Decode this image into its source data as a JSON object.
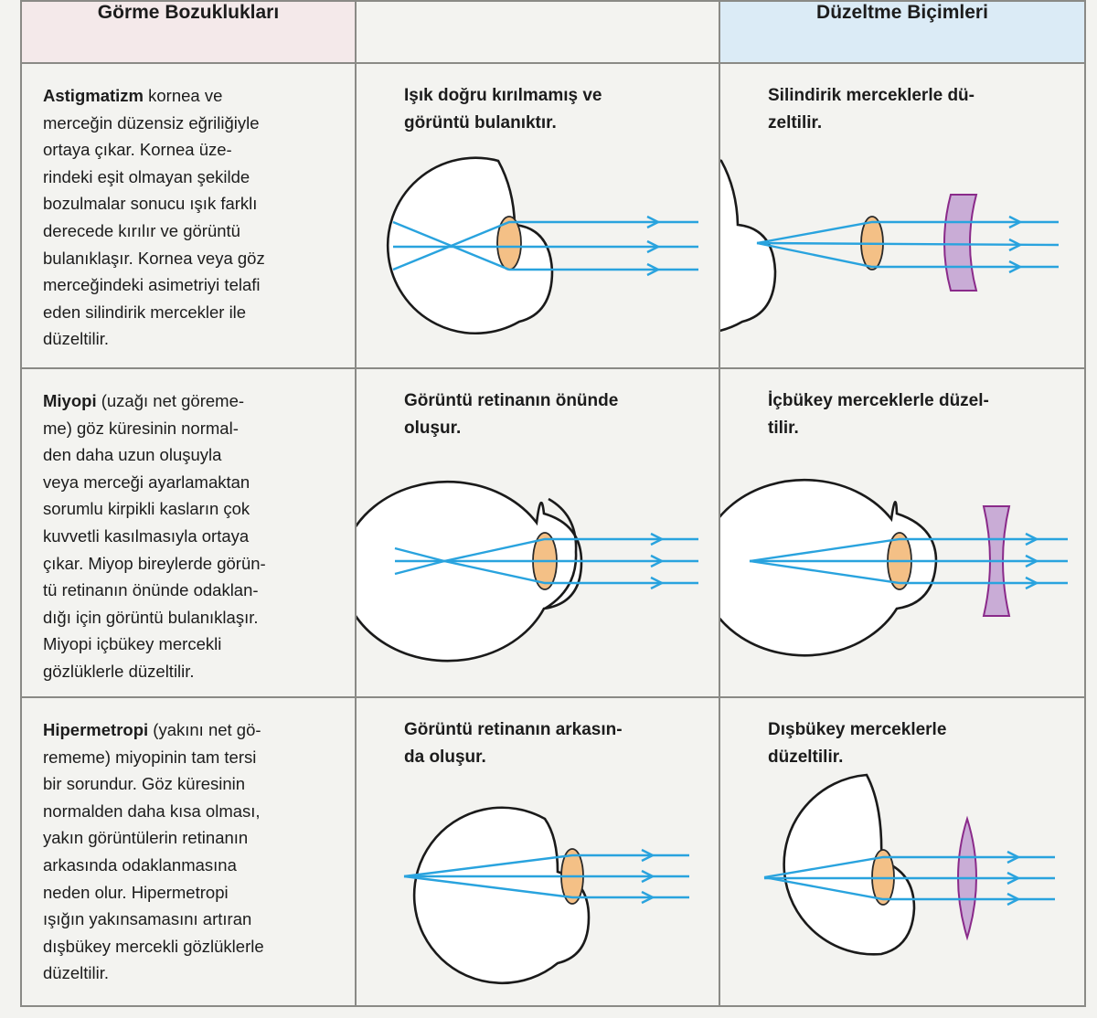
{
  "headers": {
    "col1": "Görme Bozuklukları",
    "col2": "",
    "col3": "Düzeltme Biçimleri"
  },
  "rows": [
    {
      "term": "Astigmatizm",
      "description": " kornea ve\nmerceğin düzensiz eğriliğiyle\nortaya çıkar. Kornea üze-\nrindeki eşit olmayan şekilde\nbozulmalar sonucu ışık farklı\nderecede kırılır ve görüntü\nbulanıklaşır. Kornea veya göz\nmerceğindeki asimetriyi telafi\neden silindirik mercekler ile\ndüzeltilir.",
      "problem_caption": "Işık doğru kırılmamış ve\ngörüntü bulanıktır.",
      "correction_caption": "Silindirik merceklerle dü-\nzeltilir."
    },
    {
      "term": "Miyopi",
      "description": " (uzağı net göreme-\nme) göz küresinin normal-\nden daha uzun oluşuyla\nveya merceği ayarlamaktan\nsorumlu kirpikli kasların çok\nkuvvetli kasılmasıyla ortaya\nçıkar. Miyop bireylerde görün-\ntü retinanın önünde odaklan-\ndığı için görüntü bulanıklaşır.\nMiyopi içbükey mercekli\ngözlüklerle düzeltilir.",
      "problem_caption": "Görüntü retinanın önünde\noluşur.",
      "correction_caption": "İçbükey merceklerle düzel-\ntilir."
    },
    {
      "term": "Hipermetropi",
      "description": " (yakını net gö-\nrememe) miyopinin tam tersi\nbir sorundur. Göz küresinin\nnormalden daha kısa olması,\nyakın görüntülerin retinanın\narkasında odaklanmasına\nneden olur. Hipermetropi\nışığın yakınsamasını artıran\ndışbükey mercekli gözlüklerle\ndüzeltilir.",
      "problem_caption": "Görüntü retinanın arkasın-\nda oluşur.",
      "correction_caption": "Dışbükey merceklerle\ndüzeltilir."
    }
  ],
  "colors": {
    "light_ray": "#29a3de",
    "eye_lens": "#f4c086",
    "corrective_lens": "#c9acd6",
    "header_left": "#f4e9ea",
    "header_right": "#dbebf6"
  },
  "icons": [
    "eye-diagram-icon",
    "light-ray-arrow-icon",
    "cylindrical-lens-icon",
    "concave-lens-icon",
    "convex-lens-icon"
  ]
}
